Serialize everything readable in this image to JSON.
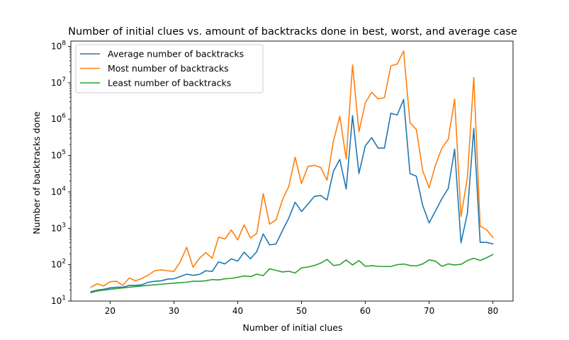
{
  "chart_data": {
    "type": "line",
    "title": "Number of initial clues vs. amount of backtracks done in best, worst, and average case",
    "xlabel": "Number of initial clues",
    "ylabel": "Number of backtracks done",
    "xlim": [
      13.85,
      83.15
    ],
    "ylim": [
      10,
      140000000
    ],
    "yscale": "log",
    "x_ticks": [
      20,
      30,
      40,
      50,
      60,
      70,
      80
    ],
    "y_ticks": [
      {
        "value": 10,
        "base": "10",
        "exp": "1"
      },
      {
        "value": 100,
        "base": "10",
        "exp": "2"
      },
      {
        "value": 1000,
        "base": "10",
        "exp": "3"
      },
      {
        "value": 10000,
        "base": "10",
        "exp": "4"
      },
      {
        "value": 100000,
        "base": "10",
        "exp": "5"
      },
      {
        "value": 1000000,
        "base": "10",
        "exp": "6"
      },
      {
        "value": 10000000,
        "base": "10",
        "exp": "7"
      },
      {
        "value": 100000000,
        "base": "10",
        "exp": "8"
      }
    ],
    "grid": false,
    "legend_position": "top-left",
    "x": [
      17,
      18,
      19,
      20,
      21,
      22,
      23,
      24,
      25,
      26,
      27,
      28,
      29,
      30,
      31,
      32,
      33,
      34,
      35,
      36,
      37,
      38,
      39,
      40,
      41,
      42,
      43,
      44,
      45,
      46,
      47,
      48,
      49,
      50,
      51,
      52,
      53,
      54,
      55,
      56,
      57,
      58,
      59,
      60,
      61,
      62,
      63,
      64,
      65,
      66,
      67,
      68,
      69,
      70,
      71,
      72,
      73,
      74,
      75,
      76,
      77,
      78,
      79,
      80
    ],
    "series": [
      {
        "name": "Average number of backtracks",
        "color": "#1f77b4",
        "values": [
          18,
          20,
          21,
          23,
          24,
          24,
          27,
          27,
          28,
          33,
          35,
          36,
          40,
          41,
          47,
          55,
          51,
          54,
          68,
          65,
          120,
          105,
          145,
          125,
          220,
          145,
          230,
          700,
          350,
          370,
          850,
          1900,
          5200,
          2900,
          4600,
          7500,
          8000,
          6000,
          37000,
          78000,
          12000,
          1250000,
          32000,
          185000,
          310000,
          160000,
          160000,
          1450000,
          1300000,
          3500000,
          32000,
          27000,
          4200,
          1400,
          3000,
          6500,
          12500,
          150000,
          400,
          2600,
          560000,
          410,
          410,
          370
        ]
      },
      {
        "name": "Most number of backtracks",
        "color": "#ff7f0e",
        "values": [
          24,
          30,
          26,
          34,
          35,
          27,
          43,
          36,
          42,
          52,
          68,
          72,
          68,
          65,
          120,
          300,
          85,
          150,
          215,
          150,
          570,
          510,
          900,
          480,
          1250,
          540,
          730,
          9000,
          1300,
          1700,
          6000,
          14000,
          90000,
          17000,
          50000,
          54000,
          47000,
          21000,
          250000,
          1200000,
          80000,
          31000000,
          450000,
          2800000,
          5500000,
          3600000,
          3900000,
          29000000,
          33000000,
          75000000,
          800000,
          520000,
          38000,
          13000,
          55000,
          160000,
          280000,
          3600000,
          2100,
          25000,
          14000000,
          1150,
          920,
          560
        ]
      },
      {
        "name": "Least number of backtracks",
        "color": "#2ca02c",
        "values": [
          17,
          19,
          20,
          21,
          22,
          23,
          24,
          25,
          26,
          27,
          28,
          29,
          30,
          31,
          32,
          33,
          35,
          35,
          36,
          39,
          38,
          41,
          42,
          45,
          49,
          47,
          55,
          50,
          77,
          70,
          63,
          66,
          59,
          82,
          86,
          95,
          110,
          140,
          95,
          100,
          135,
          98,
          130,
          90,
          94,
          90,
          89,
          89,
          100,
          104,
          95,
          92,
          105,
          135,
          125,
          90,
          105,
          98,
          102,
          130,
          150,
          130,
          155,
          190
        ]
      }
    ]
  }
}
